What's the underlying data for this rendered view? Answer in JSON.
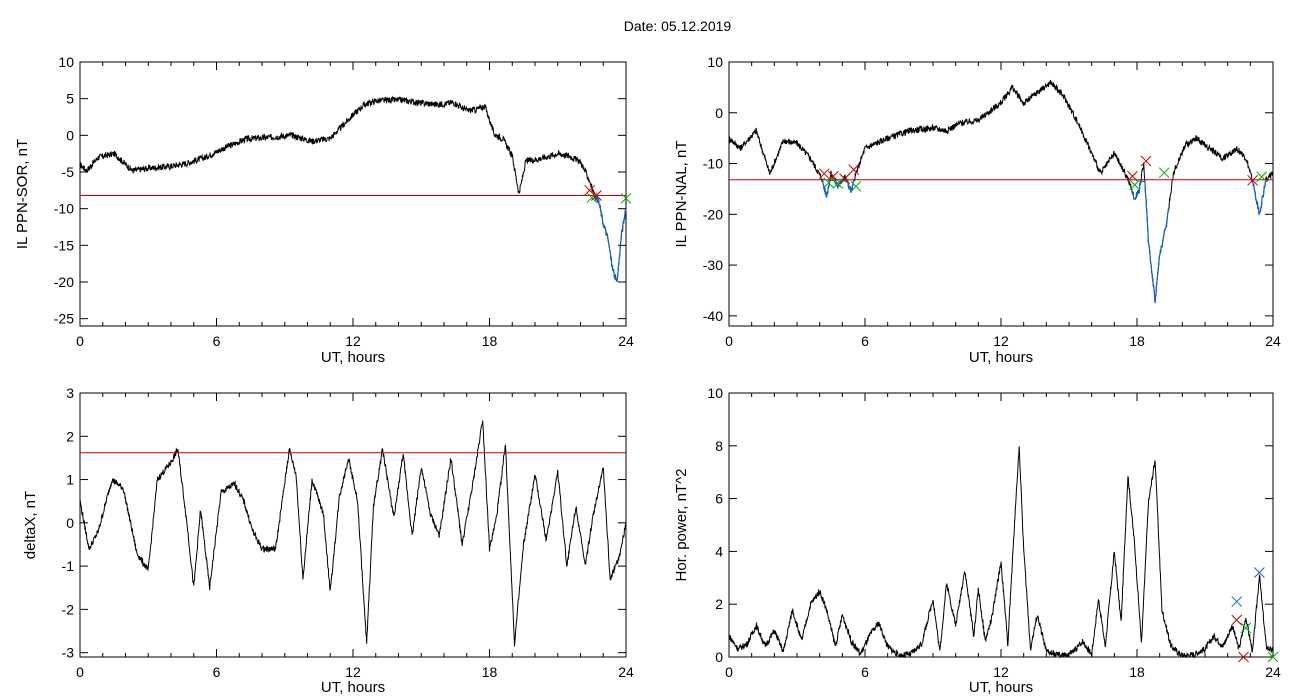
{
  "page_title": "Date:  05.12.2019",
  "colors": {
    "trace": "#000000",
    "threshold": "#cc0000",
    "highlight": "#1060d0",
    "marker_red": "#cc0000",
    "marker_green": "#00b000",
    "marker_blue": "#1060d0"
  },
  "chart_data": [
    {
      "type": "line",
      "xlabel": "UT, hours",
      "ylabel": "IL PPN-SOR, nT",
      "xlim": [
        0,
        24
      ],
      "ylim": [
        -26,
        10
      ],
      "xticks": [
        "0",
        "6",
        "12",
        "18",
        "24"
      ],
      "yticks": [
        "-25",
        "-20",
        "-15",
        "-10",
        "-5",
        "0",
        "5",
        "10"
      ],
      "threshold": -8.2,
      "series": [
        {
          "x": [
            0,
            0.3,
            0.8,
            1.5,
            2.3,
            3,
            4,
            4.7,
            5.5,
            6.5,
            7.3,
            8.2,
            9.3,
            10.2,
            11,
            11.6,
            12,
            12.5,
            13,
            13.6,
            14.2,
            15,
            15.8,
            16.4,
            17,
            17.4,
            17.8,
            18.2,
            18.6,
            19,
            19.3,
            19.6,
            20.2,
            21,
            21.5,
            22,
            22.4,
            22.6,
            22.8,
            23,
            23.2,
            23.4,
            23.6,
            23.8,
            24
          ],
          "y": [
            -4,
            -4.8,
            -3,
            -2.5,
            -4.8,
            -4.5,
            -4.2,
            -3.8,
            -3,
            -1.5,
            -0.5,
            -0.3,
            0,
            -0.8,
            -0.4,
            1.5,
            2.8,
            4.2,
            4.7,
            4.8,
            4.8,
            4.4,
            4.2,
            4.5,
            3.4,
            3.5,
            4,
            0.2,
            -0.5,
            -2.8,
            -8,
            -3.5,
            -3.2,
            -2.5,
            -2.8,
            -3.6,
            -6.2,
            -8.1,
            -9,
            -12,
            -14,
            -18,
            -20.2,
            -13.5,
            -10
          ]
        }
      ],
      "highlight_from_x": 22.6,
      "markers": [
        {
          "x": 22.4,
          "y": -7.5,
          "color": "red"
        },
        {
          "x": 22.7,
          "y": -8.2,
          "color": "red"
        },
        {
          "x": 22.5,
          "y": -8.5,
          "color": "green"
        },
        {
          "x": 24,
          "y": -8.6,
          "color": "green"
        }
      ]
    },
    {
      "type": "line",
      "xlabel": "UT, hours",
      "ylabel": "IL PPN-NAL, nT",
      "xlim": [
        0,
        24
      ],
      "ylim": [
        -42,
        10
      ],
      "xticks": [
        "0",
        "6",
        "12",
        "18",
        "24"
      ],
      "yticks": [
        "-40",
        "-30",
        "-20",
        "-10",
        "0",
        "10"
      ],
      "threshold": -13.2,
      "series": [
        {
          "x": [
            0,
            0.5,
            1.2,
            1.8,
            2.4,
            3,
            3.6,
            4.1,
            4.3,
            4.5,
            4.8,
            5.1,
            5.4,
            5.6,
            6,
            7,
            8,
            9,
            9.6,
            10.2,
            11,
            12,
            12.5,
            13,
            13.6,
            14.2,
            14.8,
            15.4,
            15.9,
            16.4,
            17,
            17.6,
            17.9,
            18.1,
            18.3,
            18.5,
            18.8,
            19,
            19.3,
            19.6,
            20.1,
            20.6,
            21.2,
            21.8,
            22.4,
            22.8,
            23.1,
            23.4,
            23.7,
            24
          ],
          "y": [
            -5,
            -7,
            -3.5,
            -12,
            -5.5,
            -6,
            -9,
            -13,
            -16.5,
            -12,
            -14.5,
            -12.5,
            -15.5,
            -12,
            -7,
            -5,
            -3.5,
            -3,
            -3.5,
            -2,
            -1.5,
            2,
            5,
            1.8,
            4,
            6,
            3,
            -2,
            -7,
            -12,
            -8,
            -13,
            -17,
            -15,
            -10,
            -25,
            -37,
            -28,
            -22,
            -12,
            -6.5,
            -5,
            -7,
            -9,
            -7,
            -9,
            -13.5,
            -20,
            -13,
            -12
          ]
        }
      ],
      "highlight_ranges": [
        [
          4.1,
          5.7
        ],
        [
          17.8,
          19.4
        ],
        [
          22.9,
          23.9
        ]
      ],
      "markers": [
        {
          "x": 4.2,
          "y": -12,
          "color": "red"
        },
        {
          "x": 4.6,
          "y": -12.5,
          "color": "red"
        },
        {
          "x": 5.1,
          "y": -13,
          "color": "red"
        },
        {
          "x": 5.5,
          "y": -11.2,
          "color": "red"
        },
        {
          "x": 17.8,
          "y": -12.5,
          "color": "red"
        },
        {
          "x": 18.4,
          "y": -9.5,
          "color": "red"
        },
        {
          "x": 23.1,
          "y": -13.3,
          "color": "red"
        },
        {
          "x": 4.4,
          "y": -13.8,
          "color": "green"
        },
        {
          "x": 4.8,
          "y": -13.9,
          "color": "green"
        },
        {
          "x": 5.6,
          "y": -14.5,
          "color": "green"
        },
        {
          "x": 17.9,
          "y": -14.2,
          "color": "green"
        },
        {
          "x": 19.2,
          "y": -11.8,
          "color": "green"
        },
        {
          "x": 23.5,
          "y": -12.6,
          "color": "green"
        }
      ]
    },
    {
      "type": "line",
      "xlabel": "UT, hours",
      "ylabel": "deltaX, nT",
      "xlim": [
        0,
        24
      ],
      "ylim": [
        -3.1,
        3
      ],
      "xticks": [
        "0",
        "6",
        "12",
        "18",
        "24"
      ],
      "yticks": [
        "-3",
        "-2",
        "-1",
        "0",
        "1",
        "2",
        "3"
      ],
      "threshold": 1.62,
      "series": [
        {
          "x": [
            0,
            0.4,
            0.8,
            1.4,
            1.9,
            2.5,
            3,
            3.4,
            4,
            4.3,
            4.7,
            5,
            5.3,
            5.7,
            6.2,
            6.8,
            7.2,
            7.6,
            8,
            8.6,
            9.2,
            9.5,
            9.8,
            10.2,
            10.7,
            11,
            11.4,
            11.8,
            12.2,
            12.6,
            12.9,
            13.3,
            13.8,
            14.2,
            14.6,
            15,
            15.4,
            15.8,
            16.3,
            16.8,
            17.3,
            17.7,
            18,
            18.3,
            18.7,
            19.1,
            19.5,
            20,
            20.5,
            21,
            21.4,
            21.8,
            22.2,
            22.6,
            23,
            23.3,
            23.7,
            24
          ],
          "y": [
            0.5,
            -0.6,
            -0.2,
            1,
            0.8,
            -0.7,
            -1.1,
            1,
            1.4,
            1.7,
            0,
            -1.5,
            0.3,
            -1.5,
            0.7,
            0.9,
            0.5,
            -0.2,
            -0.6,
            -0.6,
            1.7,
            1.1,
            -1.3,
            1,
            0.2,
            -1.6,
            0.6,
            1.5,
            0.5,
            -2.8,
            0.4,
            1.7,
            0.1,
            1.6,
            -0.3,
            1.3,
            0.2,
            -0.3,
            1.5,
            -0.5,
            1,
            2.4,
            -0.6,
            0.1,
            1.8,
            -2.8,
            -0.5,
            1.1,
            -0.4,
            1.2,
            -1,
            0.4,
            -1,
            0.3,
            1.3,
            -1.3,
            -0.8,
            0
          ]
        }
      ]
    },
    {
      "type": "line",
      "xlabel": "UT, hours",
      "ylabel": "Hor. power, nT^2",
      "xlim": [
        0,
        24
      ],
      "ylim": [
        0,
        10
      ],
      "xticks": [
        "0",
        "6",
        "12",
        "18",
        "24"
      ],
      "yticks": [
        "0",
        "2",
        "4",
        "6",
        "8",
        "10"
      ],
      "series": [
        {
          "x": [
            0,
            0.4,
            0.8,
            1.2,
            1.6,
            2,
            2.4,
            2.8,
            3.2,
            3.6,
            4,
            4.3,
            4.7,
            5,
            5.4,
            5.8,
            6.2,
            6.6,
            7,
            7.5,
            8,
            8.5,
            9,
            9.3,
            9.6,
            10,
            10.4,
            10.8,
            11,
            11.3,
            11.6,
            12,
            12.3,
            12.6,
            12.8,
            13,
            13.3,
            13.6,
            14,
            14.4,
            14.8,
            15.2,
            15.6,
            16,
            16.3,
            16.6,
            17,
            17.3,
            17.6,
            17.9,
            18.2,
            18.5,
            18.8,
            19.1,
            19.5,
            20,
            20.5,
            21,
            21.4,
            21.8,
            22.2,
            22.5,
            22.8,
            23.1,
            23.4,
            23.7,
            24
          ],
          "y": [
            0.8,
            0.3,
            0.5,
            1.2,
            0.4,
            1,
            0.2,
            1.8,
            0.6,
            2,
            2.5,
            1.8,
            0.4,
            1.6,
            0.6,
            0.1,
            0.8,
            1.3,
            0.4,
            0.05,
            0.1,
            0.5,
            2.2,
            0.2,
            2.8,
            1.2,
            3.3,
            0.8,
            2.6,
            0.6,
            1.5,
            3.6,
            0.5,
            5.1,
            8,
            4.1,
            0.3,
            1.6,
            0.2,
            0.1,
            0.05,
            0.2,
            0.6,
            0.1,
            2.2,
            0.4,
            4,
            1.3,
            6.9,
            4.2,
            0.5,
            5.8,
            7.5,
            1.8,
            0.4,
            0.05,
            0.1,
            0.3,
            0.8,
            0.4,
            1.2,
            0.3,
            1.5,
            0.2,
            3.1,
            0.4,
            0.2
          ]
        }
      ],
      "markers": [
        {
          "x": 22.4,
          "y": 2.1,
          "color": "blue"
        },
        {
          "x": 23.4,
          "y": 3.2,
          "color": "blue"
        },
        {
          "x": 22.4,
          "y": 1.4,
          "color": "red"
        },
        {
          "x": 22.7,
          "y": 0,
          "color": "red"
        },
        {
          "x": 22.8,
          "y": 1.1,
          "color": "green"
        },
        {
          "x": 24,
          "y": 0,
          "color": "green"
        }
      ]
    }
  ]
}
